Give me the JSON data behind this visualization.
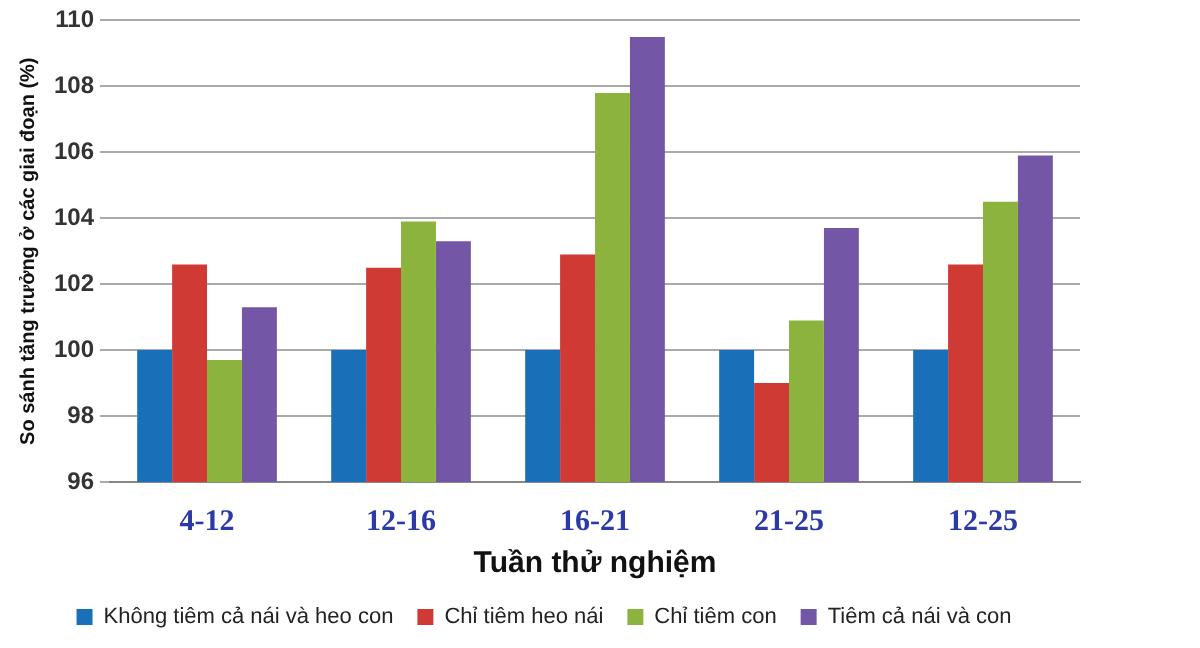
{
  "chart_data": {
    "type": "bar",
    "xlabel": "Tuần thử nghiệm",
    "ylabel": "So sánh tăng trưởng ở các giai đoạn (%)",
    "categories": [
      "4-12",
      "12-16",
      "16-21",
      "21-25",
      "12-25"
    ],
    "series": [
      {
        "name": "Không tiêm cả nái và heo con",
        "color": "#1a70b8",
        "values": [
          100,
          100,
          100,
          100,
          100
        ]
      },
      {
        "name": "Chỉ tiêm heo nái",
        "color": "#d03a35",
        "values": [
          102.6,
          102.5,
          102.9,
          99.0,
          102.6
        ]
      },
      {
        "name": "Chỉ tiêm con",
        "color": "#8db33f",
        "values": [
          99.7,
          103.9,
          107.8,
          100.9,
          104.5
        ]
      },
      {
        "name": "Tiêm cả nái và con",
        "color": "#7456a6",
        "values": [
          101.3,
          103.3,
          109.5,
          103.7,
          105.9
        ]
      }
    ],
    "ylim": [
      96,
      110
    ],
    "yticks": [
      96,
      98,
      100,
      102,
      104,
      106,
      108,
      110
    ],
    "grid": "y",
    "legend": "bottom"
  }
}
